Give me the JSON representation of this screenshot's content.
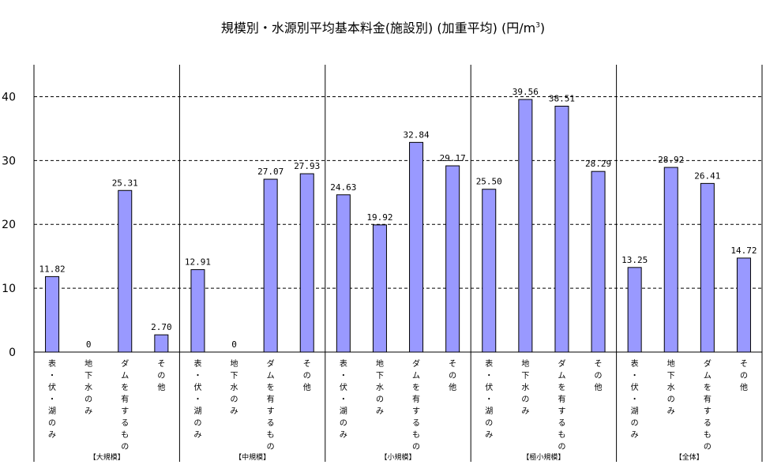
{
  "chart_data": {
    "type": "bar",
    "title_main": "規模別・水源別平均基本料金(施設別) (加重平均) (円/m",
    "title_sup": "3",
    "title_end": ")",
    "ylim": [
      0,
      45
    ],
    "yticks": [
      0,
      10,
      20,
      30,
      40
    ],
    "grid": "dashed-horizontal",
    "categories": [
      "表・伏・湖のみ",
      "地下水のみ",
      "ダムを有するもの",
      "その他"
    ],
    "groups": [
      {
        "name": "【大規模】",
        "values": [
          11.82,
          0,
          25.31,
          2.7
        ],
        "labels": [
          "11.82",
          "0",
          "25.31",
          "2.70"
        ]
      },
      {
        "name": "【中規模】",
        "values": [
          12.91,
          0,
          27.07,
          27.93
        ],
        "labels": [
          "12.91",
          "0",
          "27.07",
          "27.93"
        ]
      },
      {
        "name": "【小規模】",
        "values": [
          24.63,
          19.92,
          32.84,
          29.17
        ],
        "labels": [
          "24.63",
          "19.92",
          "32.84",
          "29.17"
        ]
      },
      {
        "name": "【極小規模】",
        "values": [
          25.5,
          39.56,
          38.51,
          28.29
        ],
        "labels": [
          "25.50",
          "39.56",
          "38.51",
          "28.29"
        ]
      },
      {
        "name": "【全体】",
        "values": [
          13.25,
          28.92,
          26.41,
          14.72
        ],
        "labels": [
          "13.25",
          "28.92",
          "26.41",
          "14.72"
        ]
      }
    ],
    "colors": {
      "bar_fill": "#9999ff",
      "bar_stroke": "#000000",
      "grid": "#000000"
    }
  }
}
